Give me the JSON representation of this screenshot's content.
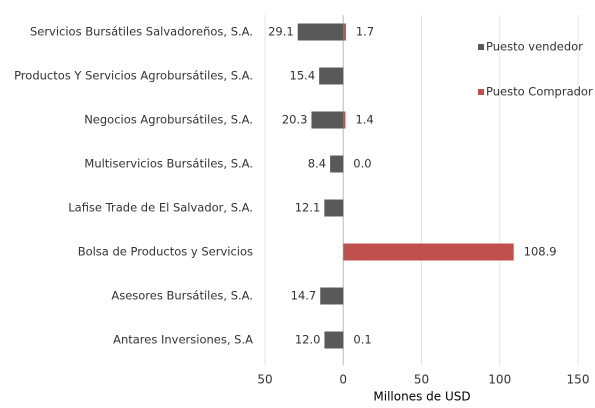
{
  "chart_data": {
    "type": "bar",
    "orientation": "horizontal",
    "x_label": "Millones de USD",
    "categories": [
      "Servicios Bursátiles Salvadoreños, S.A.",
      "Productos Y Servicios Agrobursátiles, S.A.",
      "Negocios Agrobursátiles, S.A.",
      "Multiservicios Bursátiles, S.A.",
      "Lafise Trade de El Salvador, S.A.",
      "Bolsa de Productos y Servicios",
      "Asesores Bursátiles, S.A.",
      "Antares Inversiones, S.A"
    ],
    "series": [
      {
        "name": "Puesto vendedor",
        "color": "#595959",
        "values": [
          -29.1,
          -15.4,
          -20.3,
          -8.4,
          -12.1,
          null,
          -14.7,
          -12.0
        ],
        "value_labels": [
          "29.1",
          "15.4",
          "20.3",
          "8.4",
          "12.1",
          null,
          "14.7",
          "12.0"
        ]
      },
      {
        "name": "Puesto Comprador",
        "color": "#c0504d",
        "values": [
          1.7,
          null,
          1.4,
          0.0,
          null,
          108.9,
          null,
          0.1
        ],
        "value_labels": [
          "1.7",
          null,
          "1.4",
          "0.0",
          null,
          "108.9",
          null,
          "0.1"
        ]
      }
    ],
    "xlim": [
      -50,
      150
    ],
    "xticks": [
      {
        "value": -50,
        "label": "50"
      },
      0,
      50,
      100,
      150
    ],
    "grid": true,
    "legend": "right"
  }
}
